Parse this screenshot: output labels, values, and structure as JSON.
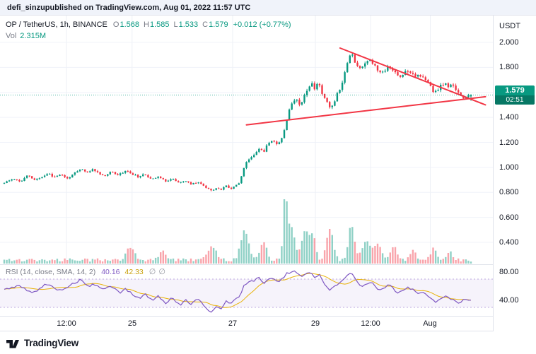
{
  "header": {
    "username": "defi_sinzu",
    "published_suffix": " published on TradingView.com, Aug 01, 2022 11:57 UTC"
  },
  "legend": {
    "symbol": "OP / TetherUS, 1h, BINANCE",
    "o_label": "O",
    "o_value": "1.568",
    "h_label": "H",
    "h_value": "1.585",
    "l_label": "L",
    "l_value": "1.533",
    "c_label": "C",
    "c_value": "1.579",
    "change": "+0.012 (+0.77%)",
    "vol_label": "Vol",
    "vol_value": "2.315M"
  },
  "rsi_legend": {
    "title": "RSI (14, close, SMA, 14, 2)",
    "rsi_value": "40.16",
    "sma_value": "42.33",
    "hidden_icon": "∅"
  },
  "price_axis": {
    "unit": "USDT",
    "ticks": [
      "2.000",
      "1.800",
      "1.600",
      "1.400",
      "1.200",
      "1.000",
      "0.800",
      "0.600",
      "0.400"
    ],
    "last_price": "1.579",
    "countdown": "02:51"
  },
  "rsi_axis": {
    "ticks": [
      "80.00",
      "40.00"
    ]
  },
  "footer": {
    "brand": "TradingView"
  },
  "colors": {
    "up": "#089981",
    "down": "#f23645",
    "trendline": "#f23645",
    "rsi": "#7e57c2",
    "rsi_sma": "#e8b208",
    "badge": "#089981",
    "text_muted": "#787b86"
  },
  "chart_data": {
    "type": "candlestick",
    "symbol": "OP/USDT",
    "timeframe": "1h",
    "exchange": "BINANCE",
    "last_candle": {
      "open": 1.568,
      "high": 1.585,
      "low": 1.533,
      "close": 1.579
    },
    "change": 0.012,
    "change_pct": 0.77,
    "volume_current": "2.315M",
    "last_price": 1.579,
    "y_axis": {
      "unit": "USDT",
      "ticks": [
        2.0,
        1.8,
        1.6,
        1.4,
        1.2,
        1.0,
        0.8,
        0.6,
        0.4
      ]
    },
    "x_axis": {
      "ticks": [
        {
          "label": "12:00",
          "pos": 0.135
        },
        {
          "label": "25",
          "pos": 0.268
        },
        {
          "label": "27",
          "pos": 0.472
        },
        {
          "label": "29",
          "pos": 0.64
        },
        {
          "label": "12:00",
          "pos": 0.752
        },
        {
          "label": "Aug",
          "pos": 0.873
        }
      ]
    },
    "price_path": [
      [
        0,
        0.875
      ],
      [
        0.02,
        0.91
      ],
      [
        0.035,
        0.885
      ],
      [
        0.05,
        0.935
      ],
      [
        0.065,
        0.9
      ],
      [
        0.08,
        0.92
      ],
      [
        0.095,
        0.955
      ],
      [
        0.105,
        0.92
      ],
      [
        0.12,
        0.945
      ],
      [
        0.135,
        0.91
      ],
      [
        0.15,
        0.95
      ],
      [
        0.165,
        0.985
      ],
      [
        0.18,
        0.955
      ],
      [
        0.19,
        0.99
      ],
      [
        0.2,
        0.96
      ],
      [
        0.215,
        0.93
      ],
      [
        0.23,
        0.965
      ],
      [
        0.245,
        0.94
      ],
      [
        0.26,
        0.975
      ],
      [
        0.275,
        0.945
      ],
      [
        0.29,
        0.92
      ],
      [
        0.3,
        0.945
      ],
      [
        0.315,
        0.91
      ],
      [
        0.33,
        0.925
      ],
      [
        0.345,
        0.89
      ],
      [
        0.36,
        0.91
      ],
      [
        0.375,
        0.875
      ],
      [
        0.39,
        0.89
      ],
      [
        0.4,
        0.865
      ],
      [
        0.415,
        0.885
      ],
      [
        0.43,
        0.845
      ],
      [
        0.445,
        0.815
      ],
      [
        0.455,
        0.84
      ],
      [
        0.465,
        0.82
      ],
      [
        0.475,
        0.855
      ],
      [
        0.485,
        0.83
      ],
      [
        0.495,
        0.855
      ],
      [
        0.505,
        0.88
      ],
      [
        0.515,
        1.02
      ],
      [
        0.525,
        1.07
      ],
      [
        0.535,
        1.1
      ],
      [
        0.545,
        1.155
      ],
      [
        0.555,
        1.12
      ],
      [
        0.565,
        1.19
      ],
      [
        0.575,
        1.225
      ],
      [
        0.585,
        1.18
      ],
      [
        0.595,
        1.24
      ],
      [
        0.602,
        1.33
      ],
      [
        0.61,
        1.46
      ],
      [
        0.618,
        1.52
      ],
      [
        0.626,
        1.555
      ],
      [
        0.634,
        1.5
      ],
      [
        0.642,
        1.565
      ],
      [
        0.65,
        1.63
      ],
      [
        0.658,
        1.68
      ],
      [
        0.664,
        1.62
      ],
      [
        0.672,
        1.69
      ],
      [
        0.68,
        1.6
      ],
      [
        0.688,
        1.55
      ],
      [
        0.696,
        1.48
      ],
      [
        0.704,
        1.5
      ],
      [
        0.712,
        1.575
      ],
      [
        0.72,
        1.64
      ],
      [
        0.728,
        1.73
      ],
      [
        0.736,
        1.86
      ],
      [
        0.744,
        1.925
      ],
      [
        0.752,
        1.83
      ],
      [
        0.76,
        1.79
      ],
      [
        0.768,
        1.815
      ],
      [
        0.776,
        1.85
      ],
      [
        0.784,
        1.865
      ],
      [
        0.792,
        1.82
      ],
      [
        0.8,
        1.78
      ],
      [
        0.808,
        1.75
      ],
      [
        0.816,
        1.78
      ],
      [
        0.824,
        1.815
      ],
      [
        0.832,
        1.78
      ],
      [
        0.84,
        1.745
      ],
      [
        0.848,
        1.72
      ],
      [
        0.856,
        1.755
      ],
      [
        0.864,
        1.78
      ],
      [
        0.872,
        1.76
      ],
      [
        0.88,
        1.735
      ],
      [
        0.888,
        1.745
      ],
      [
        0.896,
        1.72
      ],
      [
        0.904,
        1.69
      ],
      [
        0.912,
        1.66
      ],
      [
        0.92,
        1.6
      ],
      [
        0.928,
        1.62
      ],
      [
        0.936,
        1.655
      ],
      [
        0.944,
        1.67
      ],
      [
        0.952,
        1.645
      ],
      [
        0.96,
        1.66
      ],
      [
        0.968,
        1.625
      ],
      [
        0.976,
        1.59
      ],
      [
        0.984,
        1.55
      ],
      [
        0.992,
        1.56
      ],
      [
        1,
        1.579
      ]
    ],
    "volume_profile": {
      "base": 0.03,
      "bumps": [
        {
          "f": 0.27,
          "a": 0.2,
          "w": 0.012
        },
        {
          "f": 0.34,
          "a": 0.15,
          "w": 0.01
        },
        {
          "f": 0.445,
          "a": 0.22,
          "w": 0.012
        },
        {
          "f": 0.515,
          "a": 0.45,
          "w": 0.012
        },
        {
          "f": 0.555,
          "a": 0.28,
          "w": 0.01
        },
        {
          "f": 0.602,
          "a": 1.0,
          "w": 0.006
        },
        {
          "f": 0.615,
          "a": 0.5,
          "w": 0.01
        },
        {
          "f": 0.645,
          "a": 0.45,
          "w": 0.012
        },
        {
          "f": 0.662,
          "a": 0.35,
          "w": 0.008
        },
        {
          "f": 0.698,
          "a": 0.5,
          "w": 0.01
        },
        {
          "f": 0.744,
          "a": 0.55,
          "w": 0.009
        },
        {
          "f": 0.776,
          "a": 0.3,
          "w": 0.012
        },
        {
          "f": 0.8,
          "a": 0.26,
          "w": 0.01
        },
        {
          "f": 0.835,
          "a": 0.2,
          "w": 0.01
        },
        {
          "f": 0.875,
          "a": 0.16,
          "w": 0.008
        },
        {
          "f": 0.92,
          "a": 0.2,
          "w": 0.008
        },
        {
          "f": 0.955,
          "a": 0.13,
          "w": 0.008
        }
      ]
    },
    "trendlines": [
      {
        "x1": 0.5,
        "p1": 1.34,
        "x2": 0.985,
        "p2": 1.565,
        "color": "#f23645"
      },
      {
        "x1": 0.69,
        "p1": 1.955,
        "x2": 0.985,
        "p2": 1.5,
        "color": "#f23645"
      }
    ],
    "indicators": {
      "rsi": {
        "title": "RSI (14, close, SMA, 14, 2)",
        "value": 40.16,
        "sma": 42.33,
        "bands": [
          70,
          30
        ],
        "range_ticks": [
          80,
          40
        ],
        "path": [
          [
            0,
            55
          ],
          [
            0.03,
            61
          ],
          [
            0.06,
            50
          ],
          [
            0.09,
            63
          ],
          [
            0.12,
            54
          ],
          [
            0.15,
            64
          ],
          [
            0.165,
            70
          ],
          [
            0.18,
            58
          ],
          [
            0.19,
            64
          ],
          [
            0.21,
            55
          ],
          [
            0.23,
            60
          ],
          [
            0.25,
            50
          ],
          [
            0.26,
            57
          ],
          [
            0.275,
            48
          ],
          [
            0.29,
            42
          ],
          [
            0.3,
            50
          ],
          [
            0.315,
            40
          ],
          [
            0.33,
            46
          ],
          [
            0.345,
            36
          ],
          [
            0.36,
            44
          ],
          [
            0.375,
            33
          ],
          [
            0.39,
            40
          ],
          [
            0.4,
            34
          ],
          [
            0.415,
            42
          ],
          [
            0.43,
            30
          ],
          [
            0.445,
            23
          ],
          [
            0.455,
            33
          ],
          [
            0.465,
            27
          ],
          [
            0.475,
            41
          ],
          [
            0.485,
            34
          ],
          [
            0.495,
            42
          ],
          [
            0.505,
            47
          ],
          [
            0.515,
            62
          ],
          [
            0.525,
            66
          ],
          [
            0.535,
            68
          ],
          [
            0.545,
            72
          ],
          [
            0.555,
            64
          ],
          [
            0.565,
            70
          ],
          [
            0.575,
            73
          ],
          [
            0.585,
            65
          ],
          [
            0.595,
            70
          ],
          [
            0.605,
            78
          ],
          [
            0.615,
            80
          ],
          [
            0.625,
            81
          ],
          [
            0.635,
            74
          ],
          [
            0.645,
            77
          ],
          [
            0.655,
            80
          ],
          [
            0.665,
            73
          ],
          [
            0.675,
            76
          ],
          [
            0.685,
            64
          ],
          [
            0.695,
            55
          ],
          [
            0.705,
            58
          ],
          [
            0.715,
            64
          ],
          [
            0.725,
            69
          ],
          [
            0.735,
            75
          ],
          [
            0.745,
            78
          ],
          [
            0.755,
            66
          ],
          [
            0.765,
            60
          ],
          [
            0.775,
            64
          ],
          [
            0.785,
            66
          ],
          [
            0.795,
            60
          ],
          [
            0.805,
            54
          ],
          [
            0.815,
            58
          ],
          [
            0.825,
            62
          ],
          [
            0.835,
            55
          ],
          [
            0.845,
            50
          ],
          [
            0.855,
            55
          ],
          [
            0.865,
            58
          ],
          [
            0.875,
            56
          ],
          [
            0.885,
            50
          ],
          [
            0.895,
            52
          ],
          [
            0.905,
            47
          ],
          [
            0.915,
            42
          ],
          [
            0.925,
            37
          ],
          [
            0.935,
            43
          ],
          [
            0.945,
            47
          ],
          [
            0.955,
            43
          ],
          [
            0.965,
            40
          ],
          [
            0.975,
            35
          ],
          [
            0.985,
            42
          ],
          [
            1,
            40.16
          ]
        ]
      }
    }
  }
}
